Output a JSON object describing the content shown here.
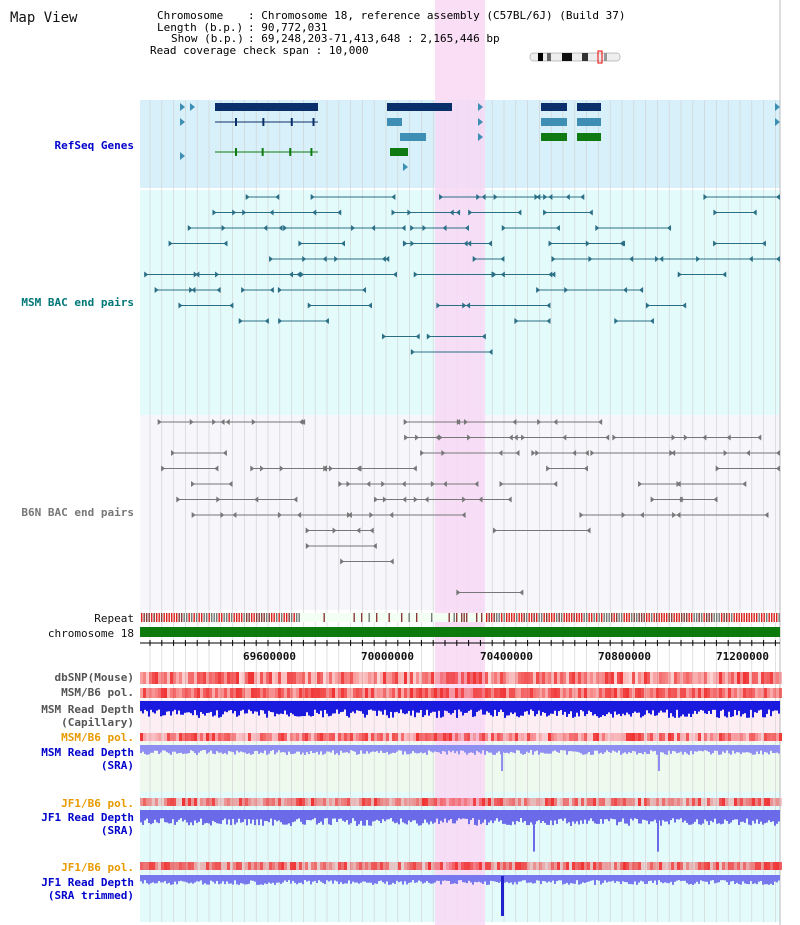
{
  "title": "Map View",
  "info": {
    "chromosome_key": "Chromosome",
    "chromosome_val": "Chromosome 18, reference assembly (C57BL/6J) (Build 37)",
    "length_key": "Length (b.p.)",
    "length_val": "90,772,031",
    "show_key": "Show (b.p.)",
    "show_val": "69,248,203-71,413,648 : 2,165,446 bp",
    "coverage_key": "Read coverage check span",
    "coverage_val": "10,000"
  },
  "tracks": {
    "refseq": "RefSeq Genes",
    "msm_bac": "MSM BAC end pairs",
    "b6n_bac": "B6N BAC end pairs",
    "repeat": "Repeat",
    "chromosome": "chromosome 18",
    "dbsnp": "dbSNP(Mouse)",
    "msm_b6_pol": "MSM/B6 pol.",
    "msm_depth_cap_1": "MSM Read Depth",
    "msm_depth_cap_2": "(Capillary)",
    "msm_b6_pol_2": "MSM/B6 pol.",
    "msm_depth_sra_1": "MSM Read Depth",
    "msm_depth_sra_2": "(SRA)",
    "jf1_b6_pol": "JF1/B6 pol.",
    "jf1_depth_sra_1": "JF1 Read Depth",
    "jf1_depth_sra_2": "(SRA)",
    "jf1_b6_pol_2": "JF1/B6 pol.",
    "jf1_depth_trim_1": "JF1 Read Depth",
    "jf1_depth_trim_2": "(SRA trimmed)"
  },
  "axis_ticks": [
    "69600000",
    "70000000",
    "70400000",
    "70800000",
    "71200000"
  ],
  "colors": {
    "highlight": "#f8d8f4",
    "refseq_bg": "#d8f0fa",
    "msm_bg": "#e4fbfb",
    "b6n_bg": "#f6f6fb",
    "gene_dark": "#0b2f6b",
    "gene_mid": "#3f8fb5",
    "gene_green": "#0f7a12",
    "msm_line": "#2a6f86",
    "b6n_line": "#777777",
    "chromosome": "#0c7a0c",
    "depth_blue": "#1a1adf",
    "depth_light": "#8f8ff2",
    "pol_red": "#f04040",
    "label_teal": "#007777",
    "label_blue": "#0000cc",
    "label_orange": "#e89a00"
  }
}
